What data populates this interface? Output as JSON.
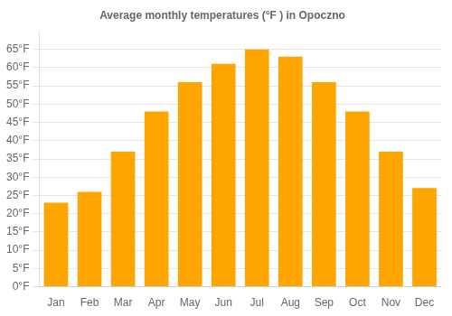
{
  "chart_data": {
    "type": "bar",
    "title": "Average monthly temperatures (°F ) in Opoczno",
    "categories": [
      "Jan",
      "Feb",
      "Mar",
      "Apr",
      "May",
      "Jun",
      "Jul",
      "Aug",
      "Sep",
      "Oct",
      "Nov",
      "Dec"
    ],
    "values": [
      23,
      26,
      37,
      48,
      56,
      61,
      65,
      63,
      56,
      48,
      37,
      27
    ],
    "color": "#FFA500",
    "ylim": [
      0,
      70
    ],
    "yticks": [
      {
        "value": 0,
        "label": "0°F"
      },
      {
        "value": 5,
        "label": "5°F"
      },
      {
        "value": 10,
        "label": "10°F"
      },
      {
        "value": 15,
        "label": "15°F"
      },
      {
        "value": 20,
        "label": "20°F"
      },
      {
        "value": 25,
        "label": "25°F"
      },
      {
        "value": 30,
        "label": "30°F"
      },
      {
        "value": 35,
        "label": "35°F"
      },
      {
        "value": 40,
        "label": "40°F"
      },
      {
        "value": 45,
        "label": "45°F"
      },
      {
        "value": 50,
        "label": "50°F"
      },
      {
        "value": 55,
        "label": "55°F"
      },
      {
        "value": 60,
        "label": "60°F"
      },
      {
        "value": 65,
        "label": "65°F"
      }
    ],
    "grid": true
  }
}
